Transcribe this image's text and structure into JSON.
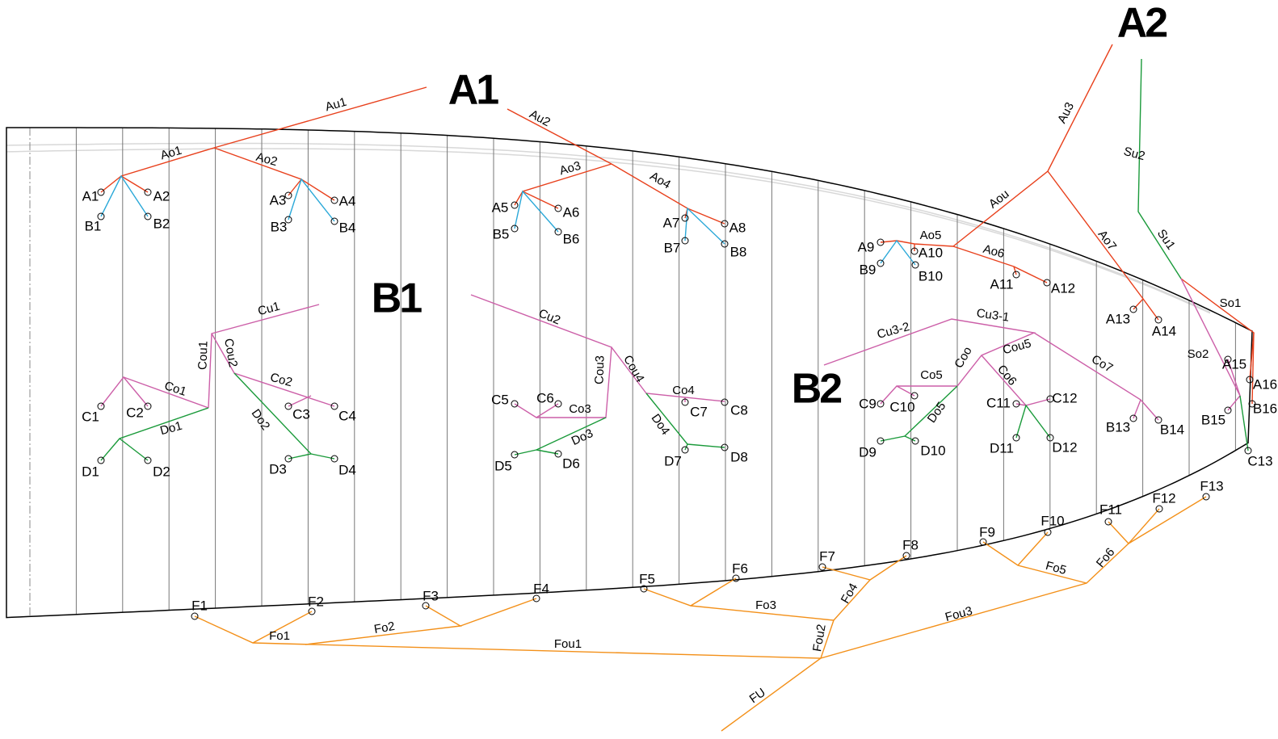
{
  "section_labels": [
    "A1",
    "A2",
    "B1",
    "B2"
  ],
  "attachment_points": [
    "A1",
    "A2",
    "B1",
    "B2",
    "A3",
    "A4",
    "B3",
    "B4",
    "A5",
    "A6",
    "B5",
    "B6",
    "A7",
    "A8",
    "B7",
    "B8",
    "A9",
    "A10",
    "B9",
    "B10",
    "A11",
    "A12",
    "A13",
    "A14",
    "A15",
    "A16",
    "B15",
    "B16",
    "C13",
    "C1",
    "C2",
    "C3",
    "C4",
    "D1",
    "D2",
    "D3",
    "D4",
    "C5",
    "C6",
    "C7",
    "C8",
    "D5",
    "D6",
    "D7",
    "D8",
    "C9",
    "C10",
    "D9",
    "D10",
    "C11",
    "C12",
    "D11",
    "D12",
    "B13",
    "B14",
    "F1",
    "F2",
    "F3",
    "F4",
    "F5",
    "F6",
    "F7",
    "F8",
    "F9",
    "F10",
    "F11",
    "F12",
    "F13"
  ],
  "line_labels": [
    "Au1",
    "Ao1",
    "Ao2",
    "Au2",
    "Ao3",
    "Ao4",
    "Au3",
    "Aou",
    "Ao5",
    "Ao6",
    "Ao7",
    "Su2",
    "Su1",
    "So1",
    "So2",
    "Cu1",
    "Cou1",
    "Cou2",
    "Co1",
    "Co2",
    "Do1",
    "Do2",
    "Cu2",
    "Cou3",
    "Cou4",
    "Co3",
    "Co4",
    "Do3",
    "Do4",
    "Cu3-2",
    "Cu3-1",
    "Co5",
    "Coo",
    "Cou5",
    "Co6",
    "Do5",
    "Co7",
    "Fo1",
    "Fo2",
    "Fou1",
    "Fo3",
    "Fo4",
    "Fou2",
    "Fou3",
    "Fo5",
    "Fo6",
    "FU"
  ]
}
